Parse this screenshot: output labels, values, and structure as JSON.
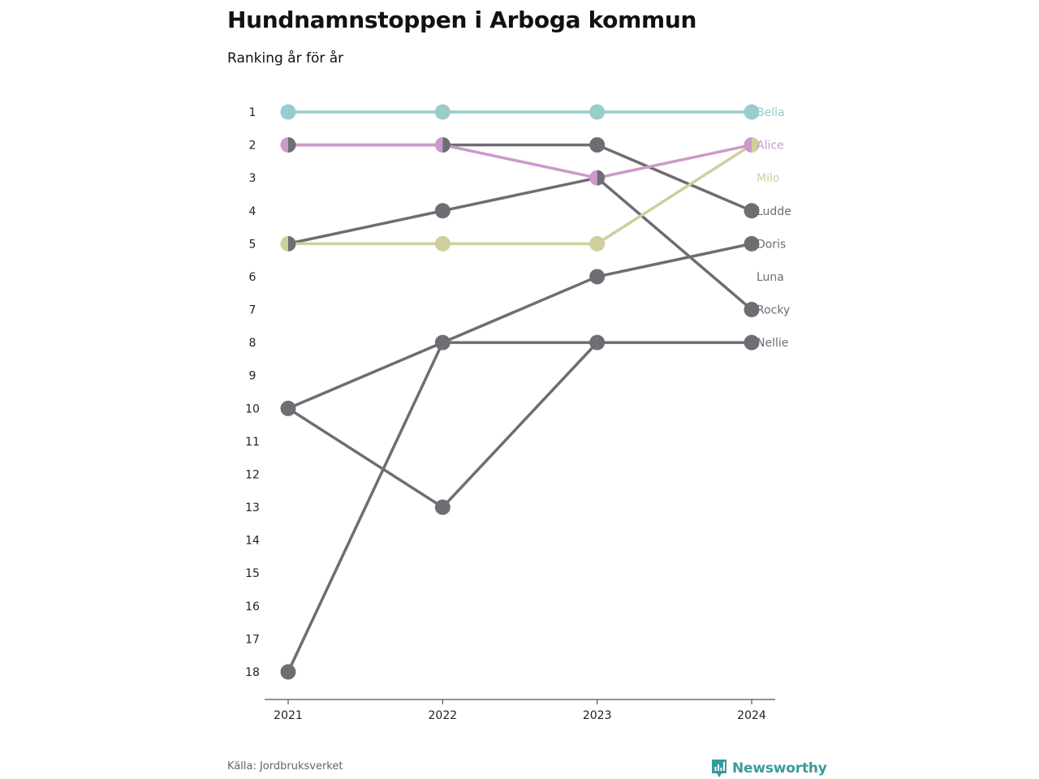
{
  "title": "Hundnamnstoppen i Arboga kommun",
  "subtitle": "Ranking år för år",
  "source": "Källa: Jordbruksverket",
  "brand": {
    "name": "Newsworthy",
    "icon": "newsworthy-logo-icon",
    "color": "#3b9a9a"
  },
  "chart_data": {
    "type": "line",
    "title": "Hundnamnstoppen i Arboga kommun",
    "subtitle": "Ranking år för år",
    "x": [
      "2021",
      "2022",
      "2023",
      "2024"
    ],
    "y_ticks": [
      1,
      2,
      3,
      4,
      5,
      6,
      7,
      8,
      9,
      10,
      11,
      12,
      13,
      14,
      15,
      16,
      17,
      18
    ],
    "ylim": [
      1,
      18
    ],
    "y_reversed": true,
    "grid": false,
    "legend": "end-labels",
    "series": [
      {
        "name": "Nellie",
        "values": [
          18,
          8,
          8,
          8
        ],
        "color": "#6e6d73"
      },
      {
        "name": "Rocky",
        "values": [
          5,
          4,
          3,
          7
        ],
        "color": "#6e6d73"
      },
      {
        "name": "Luna",
        "values": [
          10,
          13,
          8,
          null
        ],
        "color": "#6e6d73"
      },
      {
        "name": "Doris",
        "values": [
          10,
          8,
          6,
          5
        ],
        "color": "#6e6d73"
      },
      {
        "name": "Ludde",
        "values": [
          2,
          2,
          2,
          4
        ],
        "color": "#6e6d73"
      },
      {
        "name": "Milo",
        "values": [
          5,
          5,
          5,
          2
        ],
        "color": "#cfcf9c"
      },
      {
        "name": "Alice",
        "values": [
          2,
          2,
          3,
          2
        ],
        "color": "#cc99cc"
      },
      {
        "name": "Bella",
        "values": [
          1,
          1,
          1,
          1
        ],
        "color": "#99cccc"
      }
    ],
    "end_label_order": [
      "Bella",
      "Alice",
      "Milo",
      "Ludde",
      "Doris",
      "Luna",
      "Rocky",
      "Nellie"
    ]
  }
}
